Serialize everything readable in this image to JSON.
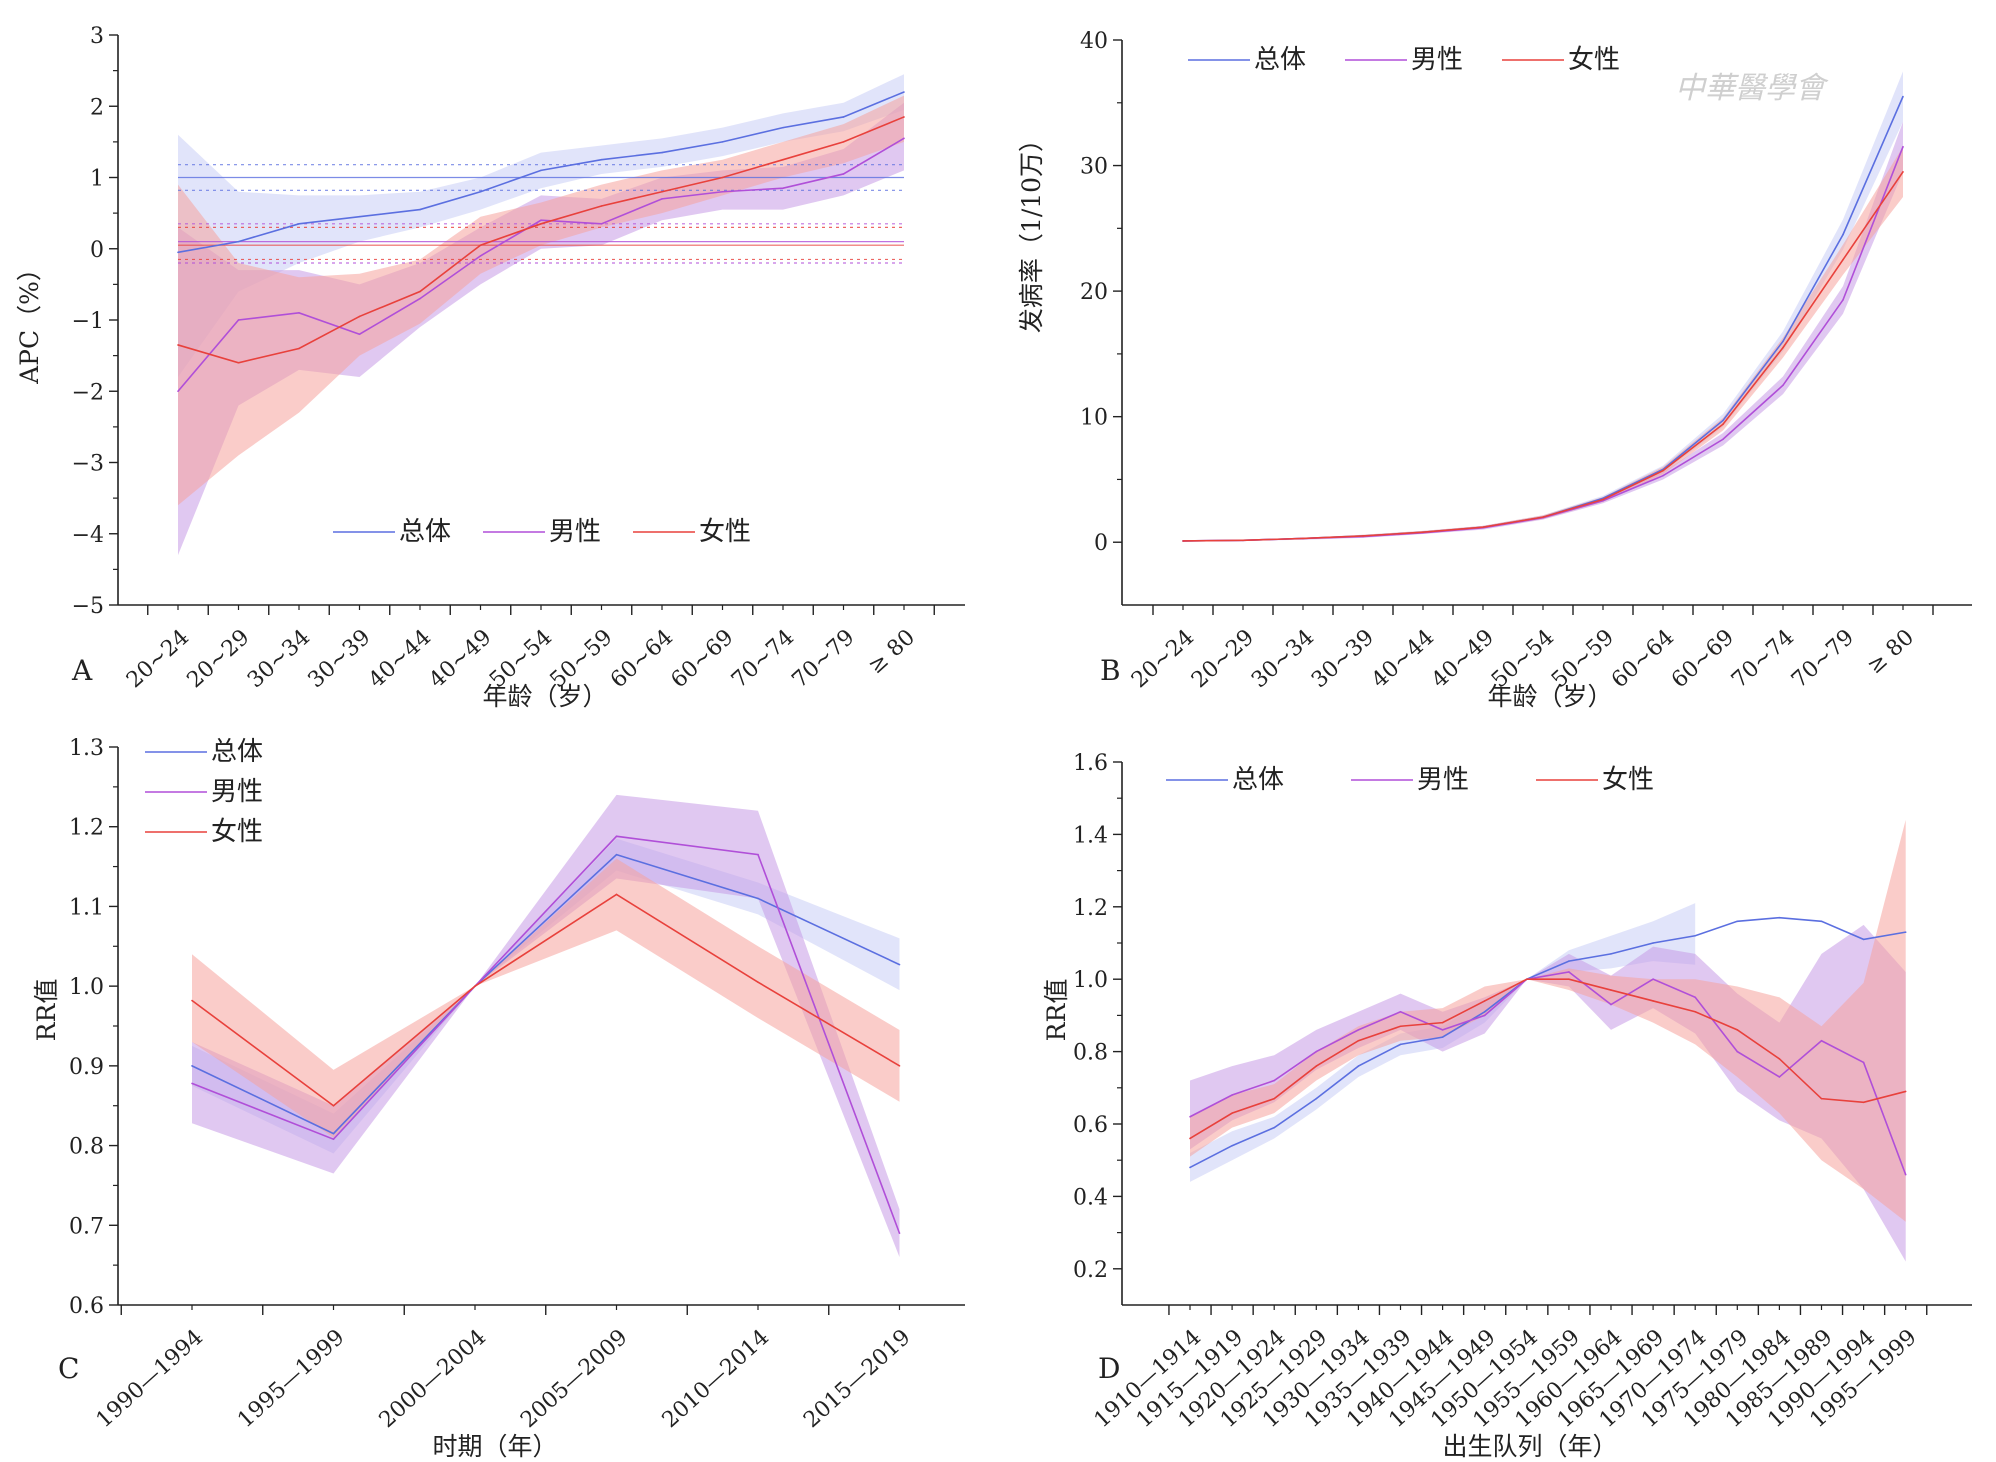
{
  "watermark": "中華醫學會",
  "colors": {
    "overall": "#5b6fe0",
    "male": "#b04fd8",
    "female": "#e8413c",
    "overall_band": "#c8cdf6",
    "male_band": "#c69be6",
    "female_band": "#f5a39d"
  },
  "chart_data": [
    {
      "panel": "A",
      "type": "line",
      "xlabel": "年龄（岁）",
      "ylabel": "APC（%）",
      "ylim": [
        -5,
        3
      ],
      "yticks": [
        -5,
        -4,
        -3,
        -2,
        -1,
        0,
        1,
        2,
        3
      ],
      "categories": [
        "20~24",
        "20~29",
        "30~34",
        "30~39",
        "40~44",
        "40~49",
        "50~54",
        "50~59",
        "60~64",
        "60~69",
        "70~74",
        "70~79",
        "≥ 80"
      ],
      "legend": [
        "总体",
        "男性",
        "女性"
      ],
      "legend_placement": "bottom-center",
      "series": [
        {
          "name": "总体",
          "color": "#5b6fe0",
          "band": "#c8cdf6",
          "values": [
            -0.05,
            0.1,
            0.35,
            0.45,
            0.55,
            0.8,
            1.1,
            1.25,
            1.35,
            1.5,
            1.7,
            1.85,
            2.2
          ],
          "lower": [
            -1.8,
            -0.6,
            -0.2,
            0.1,
            0.3,
            0.55,
            0.85,
            1.05,
            1.15,
            1.3,
            1.5,
            1.65,
            1.95
          ],
          "upper": [
            1.6,
            0.8,
            0.75,
            0.75,
            0.8,
            1.0,
            1.35,
            1.45,
            1.55,
            1.7,
            1.9,
            2.05,
            2.45
          ],
          "net": 1.0,
          "net_ci": [
            0.82,
            1.18
          ]
        },
        {
          "name": "男性",
          "color": "#b04fd8",
          "band": "#c69be6",
          "values": [
            -2.0,
            -1.0,
            -0.9,
            -1.2,
            -0.7,
            -0.1,
            0.4,
            0.35,
            0.7,
            0.8,
            0.85,
            1.05,
            1.55
          ],
          "lower": [
            -4.3,
            -2.2,
            -1.7,
            -1.8,
            -1.1,
            -0.5,
            0.0,
            0.05,
            0.4,
            0.55,
            0.55,
            0.75,
            1.1
          ],
          "upper": [
            0.3,
            -0.3,
            -0.3,
            -0.5,
            -0.2,
            0.3,
            0.75,
            0.7,
            1.0,
            1.1,
            1.15,
            1.4,
            2.05
          ],
          "net": 0.1,
          "net_ci": [
            -0.2,
            0.35
          ]
        },
        {
          "name": "女性",
          "color": "#e8413c",
          "band": "#f5a39d",
          "values": [
            -1.35,
            -1.6,
            -1.4,
            -0.95,
            -0.6,
            0.05,
            0.35,
            0.6,
            0.8,
            1.0,
            1.25,
            1.5,
            1.85
          ],
          "lower": [
            -3.6,
            -2.9,
            -2.3,
            -1.5,
            -1.05,
            -0.35,
            0.05,
            0.3,
            0.5,
            0.75,
            1.0,
            1.2,
            1.5
          ],
          "upper": [
            0.9,
            -0.2,
            -0.4,
            -0.35,
            -0.15,
            0.45,
            0.65,
            0.9,
            1.1,
            1.25,
            1.5,
            1.75,
            2.15
          ],
          "net": 0.05,
          "net_ci": [
            -0.15,
            0.3
          ]
        }
      ]
    },
    {
      "panel": "B",
      "type": "line",
      "xlabel": "年龄（岁）",
      "ylabel": "发病率（1/10万）",
      "ylim": [
        -5,
        40
      ],
      "yticks": [
        0,
        10,
        20,
        30,
        40
      ],
      "categories": [
        "20~24",
        "20~29",
        "30~34",
        "30~39",
        "40~44",
        "40~49",
        "50~54",
        "50~59",
        "60~64",
        "60~69",
        "70~74",
        "70~79",
        "≥ 80"
      ],
      "legend": [
        "总体",
        "男性",
        "女性"
      ],
      "legend_placement": "top-left",
      "series": [
        {
          "name": "总体",
          "color": "#5b6fe0",
          "band": "#c8cdf6",
          "values": [
            0.1,
            0.15,
            0.3,
            0.5,
            0.8,
            1.2,
            2.0,
            3.5,
            5.8,
            9.7,
            16.0,
            24.5,
            35.5
          ],
          "lower": [
            0.05,
            0.1,
            0.25,
            0.4,
            0.7,
            1.1,
            1.85,
            3.3,
            5.5,
            9.2,
            15.2,
            23.3,
            33.5
          ],
          "upper": [
            0.15,
            0.2,
            0.35,
            0.6,
            0.9,
            1.3,
            2.15,
            3.7,
            6.1,
            10.2,
            16.8,
            25.7,
            37.5
          ]
        },
        {
          "name": "男性",
          "color": "#b04fd8",
          "band": "#c69be6",
          "values": [
            0.1,
            0.15,
            0.3,
            0.45,
            0.75,
            1.15,
            1.95,
            3.3,
            5.3,
            8.2,
            12.5,
            19.3,
            31.5
          ],
          "lower": [
            0.05,
            0.1,
            0.2,
            0.35,
            0.65,
            1.0,
            1.8,
            3.1,
            5.0,
            7.7,
            11.8,
            18.2,
            29.5
          ],
          "upper": [
            0.15,
            0.2,
            0.35,
            0.55,
            0.85,
            1.3,
            2.1,
            3.5,
            5.6,
            8.7,
            13.2,
            20.4,
            33.5
          ]
        },
        {
          "name": "女性",
          "color": "#e8413c",
          "band": "#f5a39d",
          "values": [
            0.1,
            0.15,
            0.3,
            0.5,
            0.8,
            1.2,
            2.0,
            3.4,
            5.7,
            9.4,
            15.5,
            22.5,
            29.5
          ],
          "lower": [
            0.05,
            0.1,
            0.25,
            0.4,
            0.7,
            1.1,
            1.85,
            3.2,
            5.4,
            8.9,
            14.7,
            21.3,
            27.5
          ],
          "upper": [
            0.15,
            0.2,
            0.35,
            0.6,
            0.9,
            1.3,
            2.15,
            3.6,
            6.0,
            9.9,
            16.3,
            23.7,
            31.5
          ]
        }
      ]
    },
    {
      "panel": "C",
      "type": "line",
      "xlabel": "时期（年）",
      "ylabel": "RR值",
      "ylim": [
        0.6,
        1.3
      ],
      "yticks": [
        0.6,
        0.7,
        0.8,
        0.9,
        1.0,
        1.1,
        1.2,
        1.3
      ],
      "ytick_labels": [
        "0.6",
        "0.7",
        "0.8",
        "0.9",
        "1.0",
        "1.1",
        "1.2",
        "1.3"
      ],
      "categories": [
        "1990—1994",
        "1995—1999",
        "2000—2004",
        "2005—2009",
        "2010—2014",
        "2015—2019"
      ],
      "legend": [
        "总体",
        "男性",
        "女性"
      ],
      "legend_placement": "top-left",
      "series": [
        {
          "name": "总体",
          "color": "#5b6fe0",
          "band": "#c8cdf6",
          "values": [
            0.9,
            0.815,
            1.0,
            1.165,
            1.11,
            1.027
          ],
          "lower": [
            0.875,
            0.79,
            1.0,
            1.145,
            1.09,
            0.995
          ],
          "upper": [
            0.925,
            0.84,
            1.0,
            1.185,
            1.13,
            1.06
          ]
        },
        {
          "name": "男性",
          "color": "#b04fd8",
          "band": "#c69be6",
          "values": [
            0.878,
            0.808,
            1.0,
            1.188,
            1.165,
            0.69
          ],
          "lower": [
            0.828,
            0.765,
            1.0,
            1.135,
            1.11,
            0.66
          ],
          "upper": [
            0.93,
            0.85,
            1.0,
            1.24,
            1.22,
            0.72
          ]
        },
        {
          "name": "女性",
          "color": "#e8413c",
          "band": "#f5a39d",
          "values": [
            0.982,
            0.85,
            1.0,
            1.115,
            1.005,
            0.9
          ],
          "lower": [
            0.93,
            0.81,
            1.0,
            1.07,
            0.96,
            0.855
          ],
          "upper": [
            1.04,
            0.895,
            1.0,
            1.16,
            1.05,
            0.945
          ]
        }
      ]
    },
    {
      "panel": "D",
      "type": "line",
      "xlabel": "出生队列（年）",
      "ylabel": "RR值",
      "ylim": [
        0.1,
        1.6
      ],
      "yticks": [
        0.2,
        0.4,
        0.6,
        0.8,
        1.0,
        1.2,
        1.4,
        1.6
      ],
      "ytick_labels": [
        "0.2",
        "0.4",
        "0.6",
        "0.8",
        "1.0",
        "1.2",
        "1.4",
        "1.6"
      ],
      "categories": [
        "1910—1914",
        "1915—1919",
        "1920—1924",
        "1925—1929",
        "1930—1934",
        "1935—1939",
        "1940—1944",
        "1945—1949",
        "1950—1954",
        "1955—1959",
        "1960—1964",
        "1965—1969",
        "1970—1974",
        "1975—1979",
        "1980—1984",
        "1985—1989",
        "1990—1994",
        "1995—1999"
      ],
      "legend": [
        "总体",
        "男性",
        "女性"
      ],
      "legend_placement": "top-left",
      "series": [
        {
          "name": "总体",
          "color": "#5b6fe0",
          "band": "#c8cdf6",
          "values": [
            0.48,
            0.54,
            0.59,
            0.67,
            0.76,
            0.82,
            0.84,
            0.91,
            1.0,
            1.05,
            1.07,
            1.1,
            1.12,
            1.16,
            1.17,
            1.16,
            1.11,
            1.13
          ],
          "lower": [
            0.44,
            0.5,
            0.56,
            0.64,
            0.73,
            0.79,
            0.81,
            0.88,
            1.0,
            1.02,
            1.03,
            1.05,
            1.04,
            null,
            null,
            null,
            null,
            null
          ],
          "upper": [
            0.52,
            0.58,
            0.62,
            0.7,
            0.79,
            0.85,
            0.87,
            0.94,
            1.0,
            1.08,
            1.12,
            1.16,
            1.21,
            null,
            null,
            null,
            null,
            null
          ]
        },
        {
          "name": "男性",
          "color": "#b04fd8",
          "band": "#c69be6",
          "values": [
            0.62,
            0.68,
            0.72,
            0.8,
            0.86,
            0.91,
            0.86,
            0.9,
            1.0,
            1.02,
            0.93,
            1.0,
            0.95,
            0.8,
            0.73,
            0.83,
            0.77,
            0.46
          ],
          "lower": [
            0.53,
            0.61,
            0.66,
            0.75,
            0.81,
            0.86,
            0.8,
            0.85,
            1.0,
            0.98,
            0.86,
            0.92,
            0.85,
            0.69,
            0.61,
            0.56,
            0.42,
            0.22
          ],
          "upper": [
            0.72,
            0.76,
            0.79,
            0.86,
            0.91,
            0.96,
            0.91,
            0.95,
            1.0,
            1.07,
            1.01,
            1.09,
            1.07,
            0.96,
            0.88,
            1.07,
            1.15,
            1.02
          ]
        },
        {
          "name": "女性",
          "color": "#e8413c",
          "band": "#f5a39d",
          "values": [
            0.56,
            0.63,
            0.67,
            0.76,
            0.83,
            0.87,
            0.88,
            0.94,
            1.0,
            1.0,
            0.97,
            0.94,
            0.91,
            0.86,
            0.78,
            0.67,
            0.66,
            0.69
          ],
          "lower": [
            0.51,
            0.59,
            0.63,
            0.72,
            0.79,
            0.83,
            0.84,
            0.9,
            1.0,
            0.97,
            0.93,
            0.88,
            0.82,
            0.73,
            0.63,
            0.5,
            0.42,
            0.33
          ],
          "upper": [
            0.62,
            0.68,
            0.71,
            0.8,
            0.87,
            0.91,
            0.92,
            0.98,
            1.0,
            1.03,
            1.01,
            1.0,
            1.0,
            0.98,
            0.95,
            0.87,
            0.99,
            1.44
          ]
        }
      ]
    }
  ]
}
